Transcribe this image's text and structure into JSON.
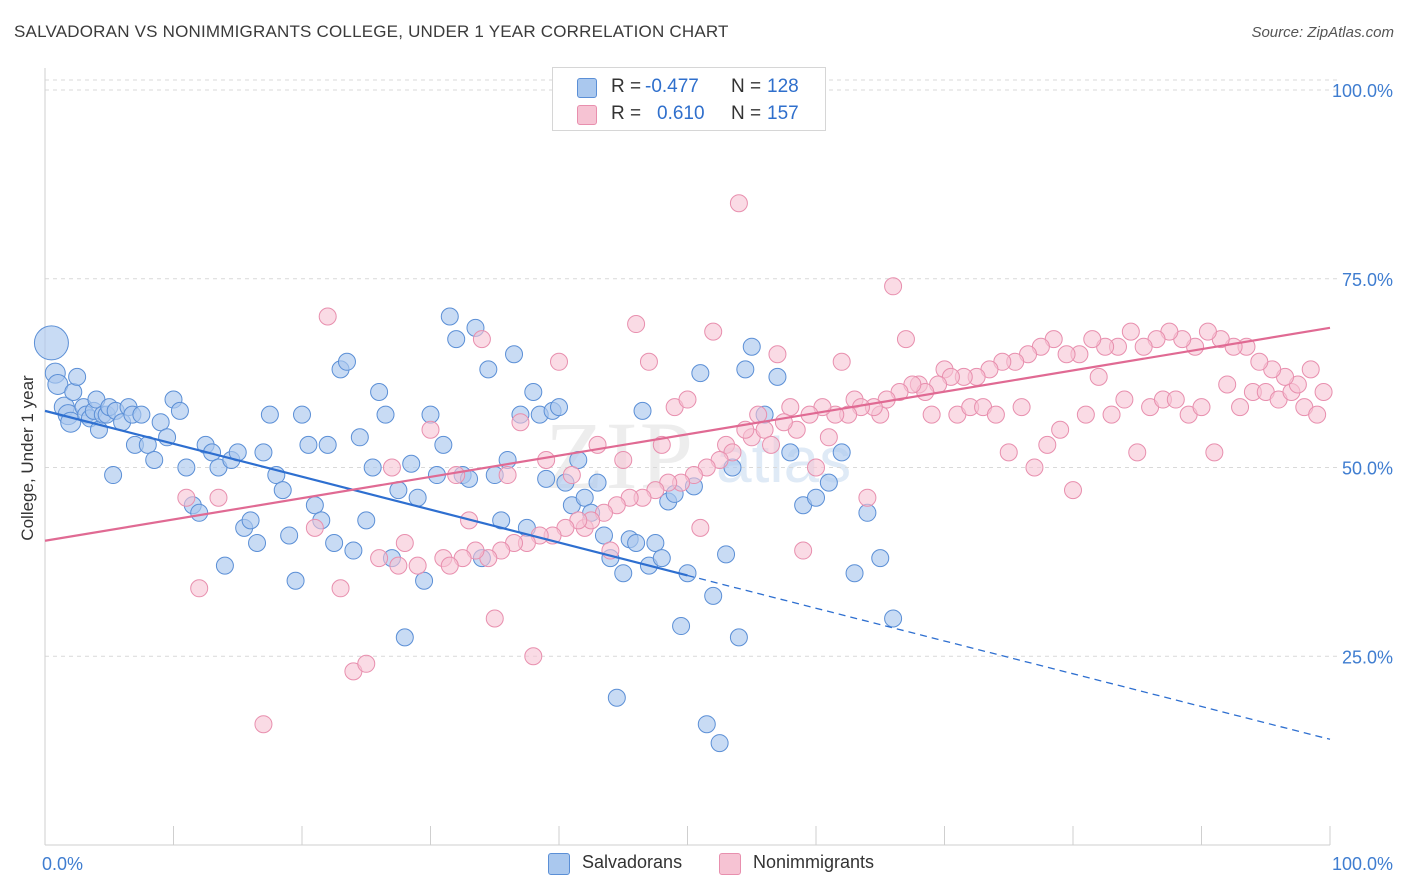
{
  "title": "SALVADORAN VS NONIMMIGRANTS COLLEGE, UNDER 1 YEAR CORRELATION CHART",
  "source": "Source: ZipAtlas.com",
  "watermark": {
    "zip": "ZIP",
    "atlas": "atlas"
  },
  "colors": {
    "blue_fill": "#aac8ee",
    "blue_stroke": "#5b8fd6",
    "blue_line": "#2e6fd0",
    "pink_fill": "#f6c3d3",
    "pink_stroke": "#e88fae",
    "pink_line": "#e06a93",
    "grid": "#d9d9d9",
    "accent_text": "#3f7dd0"
  },
  "legend": {
    "rows": [
      {
        "r_label": "R =",
        "r_value": "-0.477",
        "n_label": "N =",
        "n_value": "128"
      },
      {
        "r_label": "R =",
        "r_value": "0.610",
        "n_label": "N =",
        "n_value": "157"
      }
    ]
  },
  "bottom_legend": [
    "Salvadorans",
    "Nonimmigrants"
  ],
  "chart_data": {
    "type": "scatter",
    "title": "SALVADORAN VS NONIMMIGRANTS COLLEGE, UNDER 1 YEAR CORRELATION CHART",
    "xlabel": "",
    "ylabel": "College, Under 1 year",
    "xlim": [
      0,
      100
    ],
    "ylim": [
      0,
      100
    ],
    "x_tick_labels": [
      "0.0%",
      "100.0%"
    ],
    "y_tick_labels": [
      "100.0%",
      "75.0%",
      "50.0%",
      "25.0%"
    ],
    "y_ticks": [
      100,
      75,
      50,
      25
    ],
    "grid": true,
    "legend_position": "top-center",
    "series": [
      {
        "name": "Salvadorans",
        "color": "#aac8ee",
        "r": -0.477,
        "n": 128,
        "trend": {
          "x": [
            0,
            50,
            100
          ],
          "y": [
            57.5,
            35.7,
            14.0
          ],
          "solid_until_x": 50
        },
        "points": [
          [
            0.5,
            66.5
          ],
          [
            0.8,
            62.5
          ],
          [
            1,
            61
          ],
          [
            1.5,
            58
          ],
          [
            1.8,
            57
          ],
          [
            2,
            56
          ],
          [
            2.2,
            60
          ],
          [
            2.5,
            62
          ],
          [
            3,
            58
          ],
          [
            3.2,
            57
          ],
          [
            3.5,
            56.5
          ],
          [
            3.8,
            57.5
          ],
          [
            4,
            59
          ],
          [
            4.2,
            55
          ],
          [
            4.5,
            57
          ],
          [
            4.8,
            57
          ],
          [
            5,
            58
          ],
          [
            5.3,
            49
          ],
          [
            5.5,
            57.5
          ],
          [
            6,
            56
          ],
          [
            6.5,
            58
          ],
          [
            6.8,
            57
          ],
          [
            7,
            53
          ],
          [
            7.5,
            57
          ],
          [
            8,
            53
          ],
          [
            8.5,
            51
          ],
          [
            9,
            56
          ],
          [
            9.5,
            54
          ],
          [
            10,
            59
          ],
          [
            10.5,
            57.5
          ],
          [
            11,
            50
          ],
          [
            11.5,
            45
          ],
          [
            12,
            44
          ],
          [
            12.5,
            53
          ],
          [
            13,
            52
          ],
          [
            13.5,
            50
          ],
          [
            14,
            37
          ],
          [
            14.5,
            51
          ],
          [
            15,
            52
          ],
          [
            15.5,
            42
          ],
          [
            16,
            43
          ],
          [
            16.5,
            40
          ],
          [
            17,
            52
          ],
          [
            17.5,
            57
          ],
          [
            18,
            49
          ],
          [
            18.5,
            47
          ],
          [
            19,
            41
          ],
          [
            19.5,
            35
          ],
          [
            20,
            57
          ],
          [
            20.5,
            53
          ],
          [
            21,
            45
          ],
          [
            21.5,
            43
          ],
          [
            22,
            53
          ],
          [
            22.5,
            40
          ],
          [
            23,
            63
          ],
          [
            23.5,
            64
          ],
          [
            24,
            39
          ],
          [
            24.5,
            54
          ],
          [
            25,
            43
          ],
          [
            25.5,
            50
          ],
          [
            26,
            60
          ],
          [
            26.5,
            57
          ],
          [
            27,
            38
          ],
          [
            27.5,
            47
          ],
          [
            28,
            27.5
          ],
          [
            28.5,
            50.5
          ],
          [
            29,
            46
          ],
          [
            29.5,
            35
          ],
          [
            30,
            57
          ],
          [
            30.5,
            49
          ],
          [
            31,
            53
          ],
          [
            31.5,
            70
          ],
          [
            32,
            67
          ],
          [
            32.5,
            49
          ],
          [
            33,
            48.5
          ],
          [
            33.5,
            68.5
          ],
          [
            34,
            38
          ],
          [
            34.5,
            63
          ],
          [
            35,
            49
          ],
          [
            35.5,
            43
          ],
          [
            36,
            51
          ],
          [
            36.5,
            65
          ],
          [
            37,
            57
          ],
          [
            37.5,
            42
          ],
          [
            38,
            60
          ],
          [
            38.5,
            57
          ],
          [
            39,
            48.5
          ],
          [
            39.5,
            57.5
          ],
          [
            40,
            58
          ],
          [
            40.5,
            48
          ],
          [
            41,
            45
          ],
          [
            41.5,
            51
          ],
          [
            42,
            46
          ],
          [
            42.5,
            44
          ],
          [
            43,
            48
          ],
          [
            43.5,
            41
          ],
          [
            44,
            38
          ],
          [
            44.5,
            19.5
          ],
          [
            45,
            36
          ],
          [
            45.5,
            40.5
          ],
          [
            46,
            40
          ],
          [
            46.5,
            57.5
          ],
          [
            47,
            37
          ],
          [
            47.5,
            40
          ],
          [
            48,
            38
          ],
          [
            48.5,
            45.5
          ],
          [
            49,
            46.5
          ],
          [
            49.5,
            29
          ],
          [
            50,
            36
          ],
          [
            50.5,
            47.5
          ],
          [
            51,
            62.5
          ],
          [
            51.5,
            16
          ],
          [
            52,
            33
          ],
          [
            52.5,
            13.5
          ],
          [
            53,
            38.5
          ],
          [
            53.5,
            50
          ],
          [
            54,
            27.5
          ],
          [
            54.5,
            63
          ],
          [
            55,
            66
          ],
          [
            56,
            57
          ],
          [
            57,
            62
          ],
          [
            58,
            52
          ],
          [
            59,
            45
          ],
          [
            60,
            46
          ],
          [
            61,
            48
          ],
          [
            62,
            52
          ],
          [
            63,
            36
          ],
          [
            64,
            44
          ],
          [
            65,
            38
          ],
          [
            66,
            30
          ]
        ]
      },
      {
        "name": "Nonimmigrants",
        "color": "#f6c3d3",
        "r": 0.61,
        "n": 157,
        "trend": {
          "x": [
            0,
            100
          ],
          "y": [
            40.3,
            68.5
          ]
        },
        "points": [
          [
            11,
            46
          ],
          [
            12,
            34
          ],
          [
            13.5,
            46
          ],
          [
            17,
            16
          ],
          [
            21,
            42
          ],
          [
            22,
            70
          ],
          [
            23,
            34
          ],
          [
            24,
            23
          ],
          [
            25,
            24
          ],
          [
            26,
            38
          ],
          [
            27,
            50
          ],
          [
            27.5,
            37
          ],
          [
            28,
            40
          ],
          [
            29,
            37
          ],
          [
            30,
            55
          ],
          [
            31,
            38
          ],
          [
            32,
            49
          ],
          [
            33,
            43
          ],
          [
            34,
            67
          ],
          [
            35,
            30
          ],
          [
            36,
            49
          ],
          [
            37,
            56
          ],
          [
            38,
            25
          ],
          [
            39,
            51
          ],
          [
            40,
            64
          ],
          [
            41,
            49
          ],
          [
            42,
            42
          ],
          [
            43,
            53
          ],
          [
            44,
            39
          ],
          [
            45,
            51
          ],
          [
            46,
            69
          ],
          [
            47,
            64
          ],
          [
            48,
            53
          ],
          [
            49,
            58
          ],
          [
            50,
            59
          ],
          [
            51,
            42
          ],
          [
            52,
            68
          ],
          [
            53,
            53
          ],
          [
            54,
            85
          ],
          [
            55,
            54
          ],
          [
            56,
            55
          ],
          [
            57,
            65
          ],
          [
            58,
            58
          ],
          [
            59,
            39
          ],
          [
            60,
            50
          ],
          [
            61,
            54
          ],
          [
            62,
            64
          ],
          [
            63,
            59
          ],
          [
            64,
            46
          ],
          [
            65,
            57
          ],
          [
            66,
            74
          ],
          [
            67,
            67
          ],
          [
            68,
            61
          ],
          [
            69,
            57
          ],
          [
            70,
            63
          ],
          [
            71,
            57
          ],
          [
            72,
            58
          ],
          [
            73,
            58
          ],
          [
            74,
            57
          ],
          [
            75,
            52
          ],
          [
            76,
            58
          ],
          [
            77,
            50
          ],
          [
            78,
            53
          ],
          [
            79,
            55
          ],
          [
            80,
            47
          ],
          [
            81,
            57
          ],
          [
            82,
            62
          ],
          [
            83,
            57
          ],
          [
            84,
            59
          ],
          [
            85,
            52
          ],
          [
            86,
            58
          ],
          [
            87,
            59
          ],
          [
            88,
            59
          ],
          [
            89,
            57
          ],
          [
            90,
            58
          ],
          [
            91,
            52
          ],
          [
            92,
            61
          ],
          [
            93,
            58
          ],
          [
            94,
            60
          ],
          [
            95,
            60
          ],
          [
            96,
            59
          ],
          [
            97,
            60
          ],
          [
            98,
            58
          ],
          [
            99,
            57
          ],
          [
            99.5,
            60
          ],
          [
            98.5,
            63
          ],
          [
            97.5,
            61
          ],
          [
            96.5,
            62
          ],
          [
            95.5,
            63
          ],
          [
            94.5,
            64
          ],
          [
            93.5,
            66
          ],
          [
            92.5,
            66
          ],
          [
            91.5,
            67
          ],
          [
            90.5,
            68
          ],
          [
            89.5,
            66
          ],
          [
            88.5,
            67
          ],
          [
            87.5,
            68
          ],
          [
            86.5,
            67
          ],
          [
            85.5,
            66
          ],
          [
            84.5,
            68
          ],
          [
            83.5,
            66
          ],
          [
            82.5,
            66
          ],
          [
            81.5,
            67
          ],
          [
            80.5,
            65
          ],
          [
            79.5,
            65
          ],
          [
            78.5,
            67
          ],
          [
            77.5,
            66
          ],
          [
            76.5,
            65
          ],
          [
            75.5,
            64
          ],
          [
            74.5,
            64
          ],
          [
            73.5,
            63
          ],
          [
            72.5,
            62
          ],
          [
            71.5,
            62
          ],
          [
            70.5,
            62
          ],
          [
            69.5,
            61
          ],
          [
            68.5,
            60
          ],
          [
            67.5,
            61
          ],
          [
            66.5,
            60
          ],
          [
            65.5,
            59
          ],
          [
            64.5,
            58
          ],
          [
            63.5,
            58
          ],
          [
            62.5,
            57
          ],
          [
            61.5,
            57
          ],
          [
            60.5,
            58
          ],
          [
            59.5,
            57
          ],
          [
            58.5,
            55
          ],
          [
            57.5,
            56
          ],
          [
            56.5,
            53
          ],
          [
            55.5,
            57
          ],
          [
            54.5,
            55
          ],
          [
            53.5,
            52
          ],
          [
            52.5,
            51
          ],
          [
            51.5,
            50
          ],
          [
            50.5,
            49
          ],
          [
            49.5,
            48
          ],
          [
            48.5,
            48
          ],
          [
            47.5,
            47
          ],
          [
            46.5,
            46
          ],
          [
            45.5,
            46
          ],
          [
            44.5,
            45
          ],
          [
            43.5,
            44
          ],
          [
            42.5,
            43
          ],
          [
            41.5,
            43
          ],
          [
            40.5,
            42
          ],
          [
            39.5,
            41
          ],
          [
            38.5,
            41
          ],
          [
            37.5,
            40
          ],
          [
            36.5,
            40
          ],
          [
            35.5,
            39
          ],
          [
            34.5,
            38
          ],
          [
            33.5,
            39
          ],
          [
            32.5,
            38
          ],
          [
            31.5,
            37
          ]
        ]
      }
    ]
  }
}
